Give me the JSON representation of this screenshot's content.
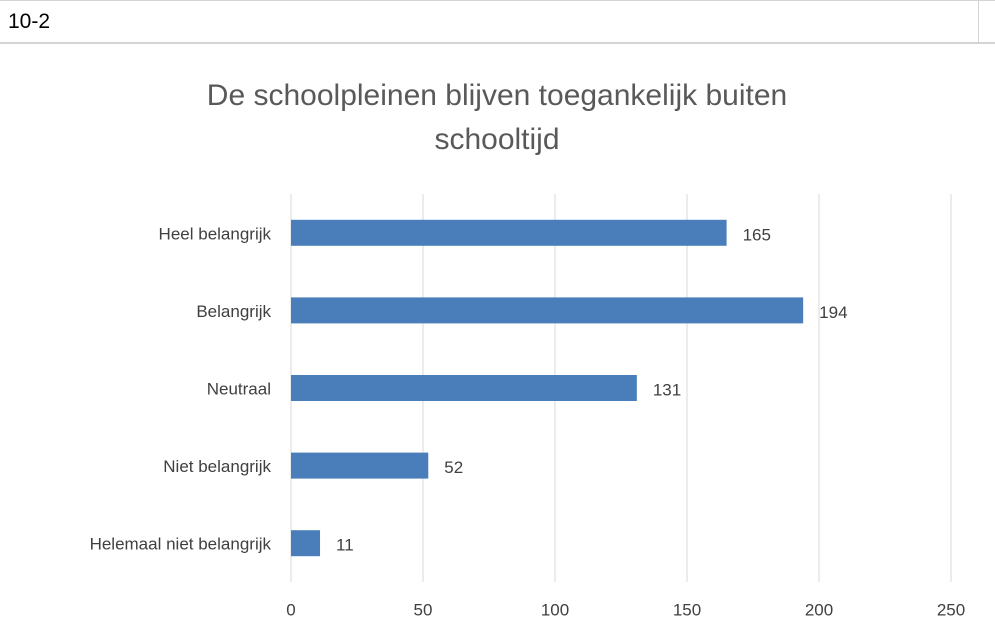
{
  "cell": "10-2",
  "chart_data": {
    "type": "barh",
    "title": "De schoolpleinen blijven toegankelijk buiten schooltijd",
    "categories": [
      "Heel belangrijk",
      "Belangrijk",
      "Neutraal",
      "Niet belangrijk",
      "Helemaal niet belangrijk"
    ],
    "values": [
      165,
      194,
      131,
      52,
      11
    ],
    "color": "#4a7ebb",
    "xlim": [
      0,
      250
    ],
    "xticks": [
      0,
      50,
      100,
      150,
      200,
      250
    ],
    "grid": true
  }
}
